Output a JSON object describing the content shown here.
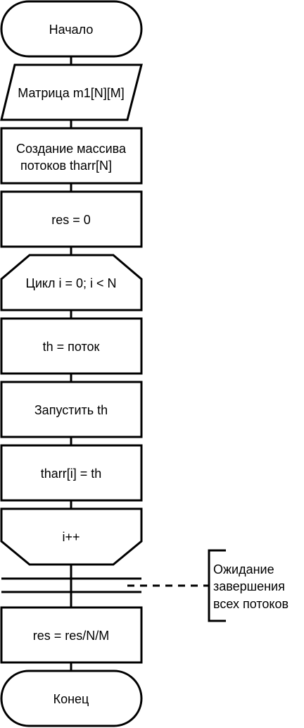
{
  "flowchart": {
    "start": "Начало",
    "input": "Матрица m1[N][M]",
    "create_threads_line1": "Создание массива",
    "create_threads_line2": "потоков tharr[N]",
    "init_res": "res = 0",
    "loop_start": "Цикл i = 0; i < N",
    "assign_thread": "th = поток",
    "start_thread": "Запустить th",
    "store_thread": "tharr[i] = th",
    "loop_end": "i++",
    "wait_comment_line1": "Ожидание",
    "wait_comment_line2": "завершения",
    "wait_comment_line3": "всех потоков",
    "compute_res": "res = res/N/M",
    "end": "Конец"
  }
}
